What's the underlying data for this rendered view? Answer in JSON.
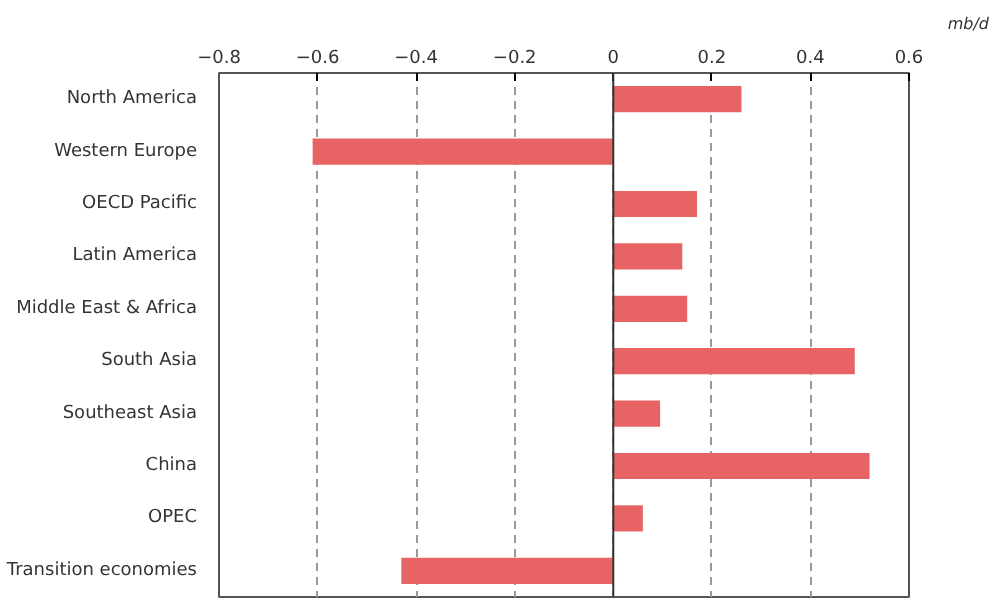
{
  "chart_data": {
    "type": "bar",
    "orientation": "horizontal",
    "xlabel": "mb/d",
    "categories": [
      "North America",
      "Western Europe",
      "OECD Pacific",
      "Latin America",
      "Middle East & Africa",
      "South Asia",
      "Southeast Asia",
      "China",
      "OPEC",
      "Transition economies"
    ],
    "values": [
      0.26,
      -0.61,
      0.17,
      0.14,
      0.15,
      0.49,
      0.095,
      0.52,
      0.06,
      -0.43
    ],
    "color": "#e86464",
    "xlim": [
      -0.8,
      0.6
    ],
    "xticks": [
      {
        "value": -0.8,
        "label": "−0.8"
      },
      {
        "value": -0.6,
        "label": "−0.6"
      },
      {
        "value": -0.4,
        "label": "−0.4"
      },
      {
        "value": -0.2,
        "label": "−0.2"
      },
      0,
      0.2,
      0.4,
      0.6
    ],
    "grid": "x"
  }
}
